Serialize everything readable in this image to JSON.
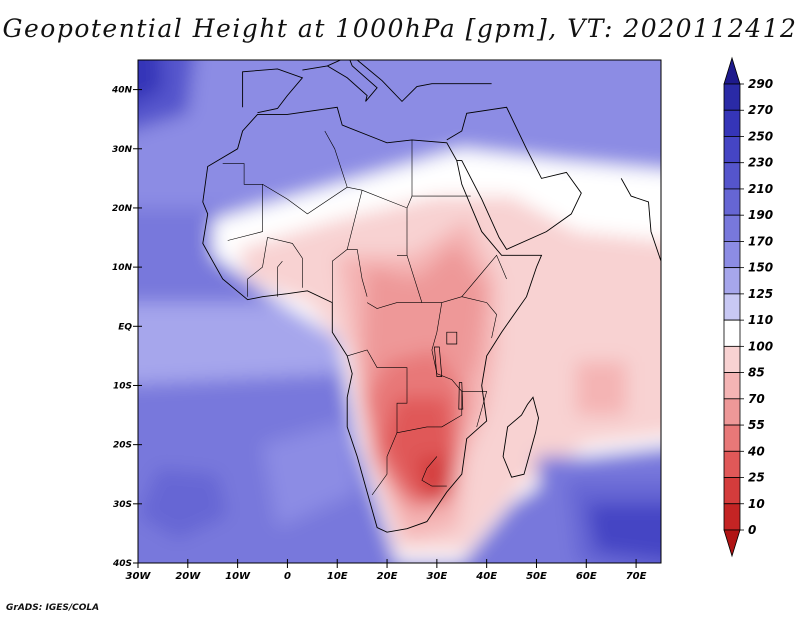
{
  "chart_data": {
    "type": "heatmap",
    "title": "Geopotential Height at 1000hPa [gpm], VT: 2020112412",
    "variable": "Geopotential Height at 1000hPa",
    "units": "gpm",
    "valid_time": "2020112412",
    "region": "Africa and surrounding oceans",
    "x_axis": {
      "range": [
        -30,
        75
      ],
      "ticks": [
        -30,
        -20,
        -10,
        0,
        10,
        20,
        30,
        40,
        50,
        60,
        70
      ],
      "tick_labels": [
        "30W",
        "20W",
        "10W",
        "0",
        "10E",
        "20E",
        "30E",
        "40E",
        "50E",
        "60E",
        "70E"
      ]
    },
    "y_axis": {
      "range": [
        -40,
        45
      ],
      "ticks": [
        40,
        30,
        20,
        10,
        0,
        -10,
        -20,
        -30,
        -40
      ],
      "tick_labels": [
        "40N",
        "30N",
        "20N",
        "10N",
        "EQ",
        "10S",
        "20S",
        "30S",
        "40S"
      ]
    },
    "colorbar": {
      "levels": [
        290,
        270,
        250,
        230,
        210,
        190,
        170,
        150,
        125,
        110,
        100,
        85,
        70,
        55,
        40,
        25,
        10,
        0
      ],
      "level_labels": [
        "290",
        "270",
        "250",
        "230",
        "210",
        "190",
        "170",
        "150",
        "125",
        "110",
        "100",
        "85",
        "70",
        "55",
        "40",
        "25",
        "10",
        "0"
      ],
      "colors": [
        "#1e1a8c",
        "#2a2aa6",
        "#3535b8",
        "#4545c4",
        "#5555cc",
        "#6666d4",
        "#7878dc",
        "#8c8ce4",
        "#a6a6ec",
        "#c8c8f4",
        "#ffffff",
        "#f8d2d2",
        "#f4b4b4",
        "#ee9898",
        "#e87878",
        "#e05858",
        "#d43c3c",
        "#c42424",
        "#b01414"
      ],
      "extend": "both"
    },
    "features": [
      {
        "name": "high",
        "lon": -27,
        "lat": 40,
        "approx_value": 250
      },
      {
        "name": "high",
        "lon": -20,
        "lat": -29,
        "approx_value": 190
      },
      {
        "name": "high",
        "lon": 65,
        "lat": -32,
        "approx_value": 230
      },
      {
        "name": "low",
        "lon": 30,
        "lat": -26,
        "approx_value": 20
      },
      {
        "name": "low",
        "lon": 20,
        "lat": -13,
        "approx_value": 40
      },
      {
        "name": "low",
        "lon": 62,
        "lat": -11,
        "approx_value": 70
      }
    ]
  },
  "credit": "GrADS: IGES/COLA"
}
